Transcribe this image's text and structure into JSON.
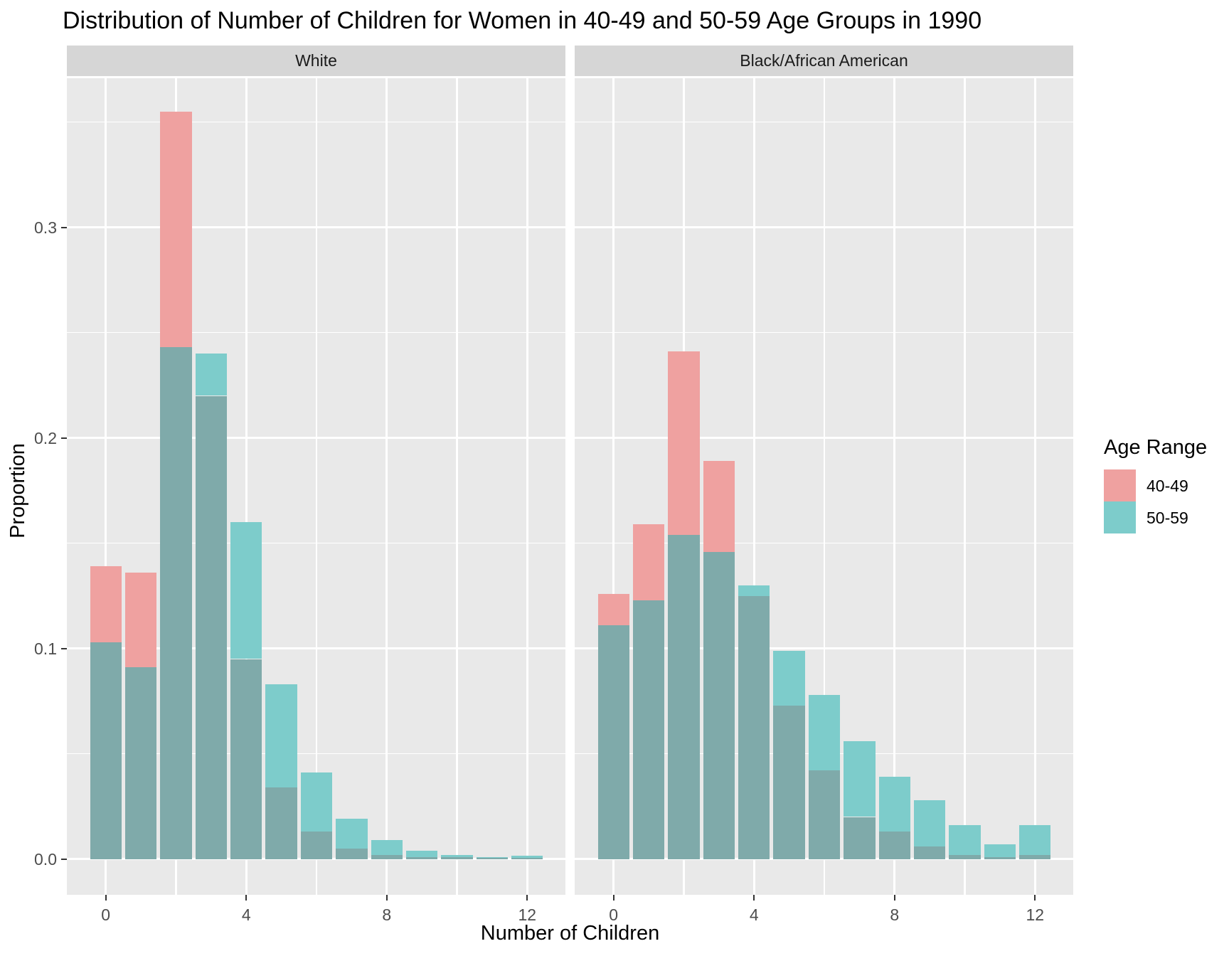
{
  "title": "Distribution of Number of Children for Women in 40-49 and 50-59 Age Groups in 1990",
  "x_axis": {
    "label": "Number of Children",
    "tick_labels": [
      "0",
      "4",
      "8",
      "12"
    ],
    "tick_values": [
      0,
      4,
      8,
      12
    ]
  },
  "y_axis": {
    "label": "Proportion",
    "tick_labels": [
      "0.0",
      "0.1",
      "0.2",
      "0.3"
    ],
    "tick_values": [
      0,
      0.1,
      0.2,
      0.3
    ]
  },
  "legend": {
    "title": "Age Range",
    "items": [
      {
        "label": "40-49",
        "color": "#EFA1A0"
      },
      {
        "label": "50-59",
        "color": "#7DCCCB"
      }
    ]
  },
  "colors": {
    "overlap": "#7FAAAA",
    "pink": "#EFA1A0",
    "teal": "#7DCCCB",
    "panel_bg": "#E9E9E9",
    "strip_bg": "#D6D6D6",
    "grid": "#FFFFFF",
    "tick_mark": "#333333",
    "axis_text": "#4D4D4D"
  },
  "chart_data": {
    "type": "bar",
    "subtype": "overlaid-distribution (position identity, semi-transparent fills)",
    "title": "Distribution of Number of Children for Women in 40-49 and 50-59 Age Groups in 1990",
    "xlabel": "Number of Children",
    "ylabel": "Proportion",
    "x": [
      0,
      1,
      2,
      3,
      4,
      5,
      6,
      7,
      8,
      9,
      10,
      11,
      12
    ],
    "xlim": [
      -1.25,
      13.1
    ],
    "ylim": [
      0,
      0.3736
    ],
    "grid": true,
    "legend_position": "right",
    "facets": [
      {
        "name": "White",
        "series": [
          {
            "name": "40-49",
            "values": [
              0.139,
              0.136,
              0.355,
              0.22,
              0.095,
              0.034,
              0.013,
              0.005,
              0.002,
              0.001,
              0.001,
              0.0005,
              0.0005
            ]
          },
          {
            "name": "50-59",
            "values": [
              0.103,
              0.091,
              0.243,
              0.24,
              0.16,
              0.083,
              0.041,
              0.019,
              0.009,
              0.004,
              0.002,
              0.001,
              0.0015
            ]
          }
        ]
      },
      {
        "name": "Black/African American",
        "series": [
          {
            "name": "40-49",
            "values": [
              0.126,
              0.159,
              0.241,
              0.189,
              0.125,
              0.073,
              0.042,
              0.02,
              0.013,
              0.006,
              0.002,
              0.001,
              0.002
            ]
          },
          {
            "name": "50-59",
            "values": [
              0.111,
              0.123,
              0.154,
              0.146,
              0.13,
              0.099,
              0.078,
              0.056,
              0.039,
              0.028,
              0.016,
              0.007,
              0.016
            ]
          }
        ]
      }
    ]
  }
}
